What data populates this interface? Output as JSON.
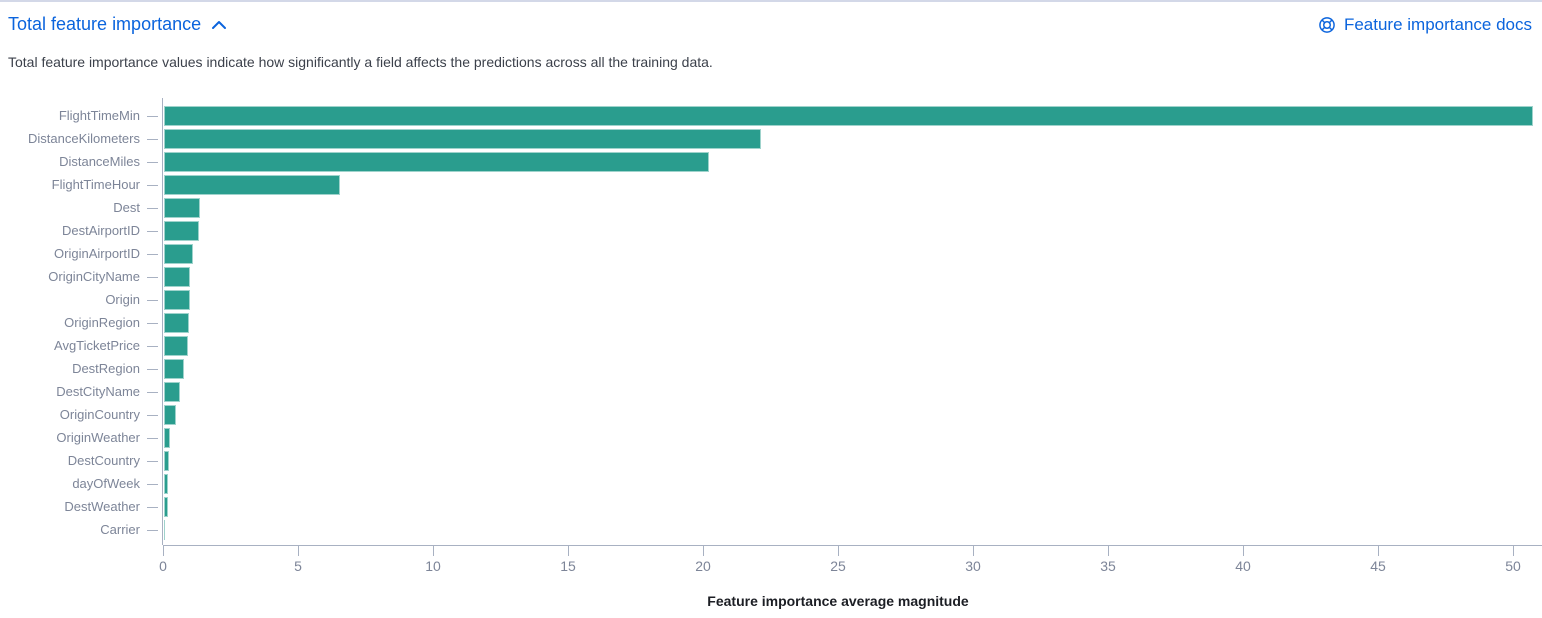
{
  "header": {
    "title": "Total feature importance",
    "collapse_icon": "chevron-up-icon",
    "docs_link": {
      "label": "Feature importance docs",
      "icon": "lifebuoy-help-icon"
    }
  },
  "description": "Total feature importance values indicate how significantly a field affects the predictions across all the training data.",
  "colors": {
    "bar": "#2a9d8e",
    "link_blue": "#0b64dd",
    "axis": "#a8b1c2",
    "label_text": "#7d8598",
    "axis_title_text": "#1c1e24"
  },
  "chart_data": {
    "type": "bar",
    "orientation": "horizontal",
    "title": "Total feature importance",
    "xlabel": "Feature importance average magnitude",
    "ylabel": "",
    "legend": "none",
    "grid": "off",
    "xlim": [
      0,
      51.1
    ],
    "xticks": [
      0,
      5,
      10,
      15,
      20,
      25,
      30,
      35,
      40,
      45,
      50
    ],
    "categories": [
      "FlightTimeMin",
      "DistanceKilometers",
      "DistanceMiles",
      "FlightTimeHour",
      "Dest",
      "DestAirportID",
      "OriginAirportID",
      "OriginCityName",
      "Origin",
      "OriginRegion",
      "AvgTicketPrice",
      "DestRegion",
      "DestCityName",
      "OriginCountry",
      "OriginWeather",
      "DestCountry",
      "dayOfWeek",
      "DestWeather",
      "Carrier"
    ],
    "values": [
      50.7,
      22.1,
      20.2,
      6.5,
      1.33,
      1.3,
      1.07,
      0.97,
      0.96,
      0.93,
      0.89,
      0.74,
      0.59,
      0.44,
      0.22,
      0.18,
      0.15,
      0.14,
      0.05
    ]
  }
}
